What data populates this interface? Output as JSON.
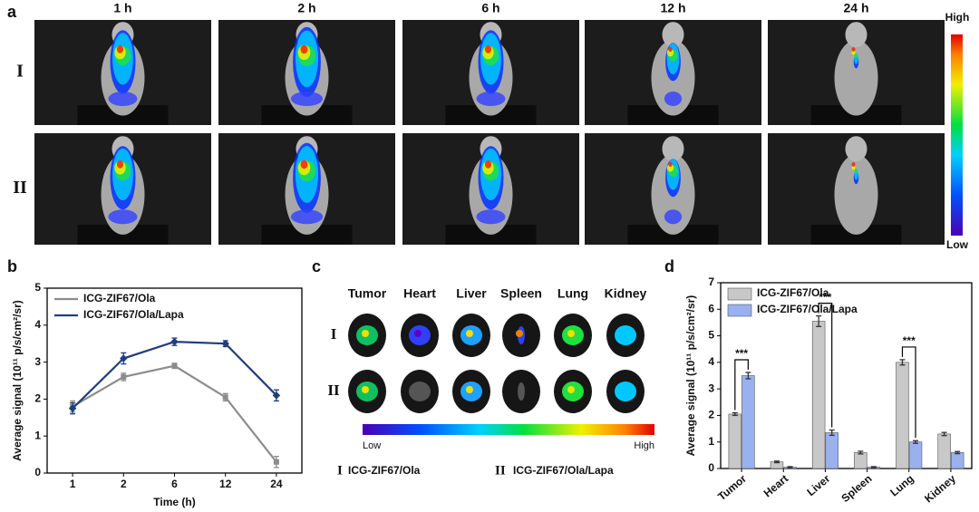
{
  "panel_labels": [
    "a",
    "b",
    "c",
    "d"
  ],
  "imaging": {
    "times": [
      "1 h",
      "2 h",
      "6 h",
      "12 h",
      "24 h"
    ],
    "groups": [
      "I",
      "II"
    ],
    "scale_high": "High",
    "scale_low": "Low"
  },
  "ex_vivo": {
    "organs": [
      "Tumor",
      "Heart",
      "Liver",
      "Spleen",
      "Lung",
      "Kidney"
    ],
    "groups": [
      "I",
      "II"
    ],
    "scale_low": "Low",
    "scale_high": "High",
    "legend": [
      {
        "mark": "I",
        "text": "ICG-ZIF67/Ola"
      },
      {
        "mark": "II",
        "text": "ICG-ZIF67/Ola/Lapa"
      }
    ]
  },
  "chart_data": [
    {
      "type": "line",
      "xlabel": "Time (h)",
      "ylabel": "Average signal (10¹¹ p/s/cm²/sr)",
      "categories": [
        "1",
        "2",
        "6",
        "12",
        "24"
      ],
      "ylim": [
        0,
        5
      ],
      "yticks": [
        0,
        1,
        2,
        3,
        4,
        5
      ],
      "legend": "upper left",
      "series": [
        {
          "name": "ICG-ZIF67/Ola",
          "color": "#8c8c8c",
          "values": [
            1.8,
            2.6,
            2.9,
            2.05,
            0.3
          ],
          "errors": [
            0.15,
            0.1,
            0.07,
            0.1,
            0.15
          ]
        },
        {
          "name": "ICG-ZIF67/Ola/Lapa",
          "color": "#1f3f7a",
          "values": [
            1.75,
            3.1,
            3.55,
            3.5,
            2.1
          ],
          "errors": [
            0.15,
            0.15,
            0.1,
            0.08,
            0.15
          ]
        }
      ]
    },
    {
      "type": "bar",
      "ylabel": "Average signal (10¹¹ p/s/cm²/sr)",
      "categories": [
        "Tumor",
        "Heart",
        "Liver",
        "Spleen",
        "Lung",
        "Kidney"
      ],
      "ylim": [
        0,
        7
      ],
      "yticks": [
        0,
        1,
        2,
        3,
        4,
        5,
        6,
        7
      ],
      "legend": "upper left",
      "significance": [
        "***",
        null,
        "***",
        null,
        "***",
        null
      ],
      "series": [
        {
          "name": "ICG-ZIF67/Ola",
          "color": "#c8c8c8",
          "values": [
            2.05,
            0.25,
            5.55,
            0.6,
            4.0,
            1.3
          ],
          "errors": [
            0.05,
            0.03,
            0.2,
            0.05,
            0.1,
            0.06
          ]
        },
        {
          "name": "ICG-ZIF67/Ola/Lapa",
          "color": "#9ab1f0",
          "values": [
            3.5,
            0.05,
            1.35,
            0.05,
            1.0,
            0.6
          ],
          "errors": [
            0.12,
            0.02,
            0.1,
            0.02,
            0.05,
            0.04
          ]
        }
      ]
    }
  ]
}
